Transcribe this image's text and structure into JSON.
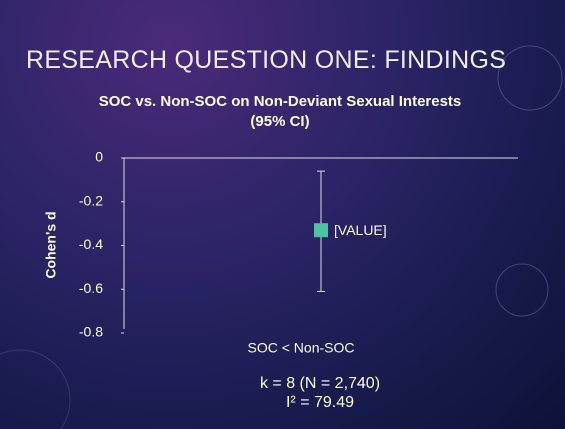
{
  "slide_title": "RESEARCH QUESTION ONE: FINDINGS",
  "chart_data": {
    "type": "errorpoint",
    "title": "SOC vs. Non-SOC on Non-Deviant Sexual Interests (95% CI)",
    "y_label": "Cohen's d",
    "categories": [
      "SOC < Non-SOC"
    ],
    "values": [
      -0.33
    ],
    "value_labels": [
      "[VALUE]"
    ],
    "ci_low": [
      -0.61
    ],
    "ci_high": [
      -0.06
    ],
    "color": "#4fc3a1",
    "ylim": [
      -0.8,
      0
    ],
    "yticks": [
      0,
      -0.2,
      -0.4,
      -0.6,
      -0.8
    ]
  },
  "notes": [
    "k = 8 (N = 2,740)",
    "I² = 79.49"
  ]
}
